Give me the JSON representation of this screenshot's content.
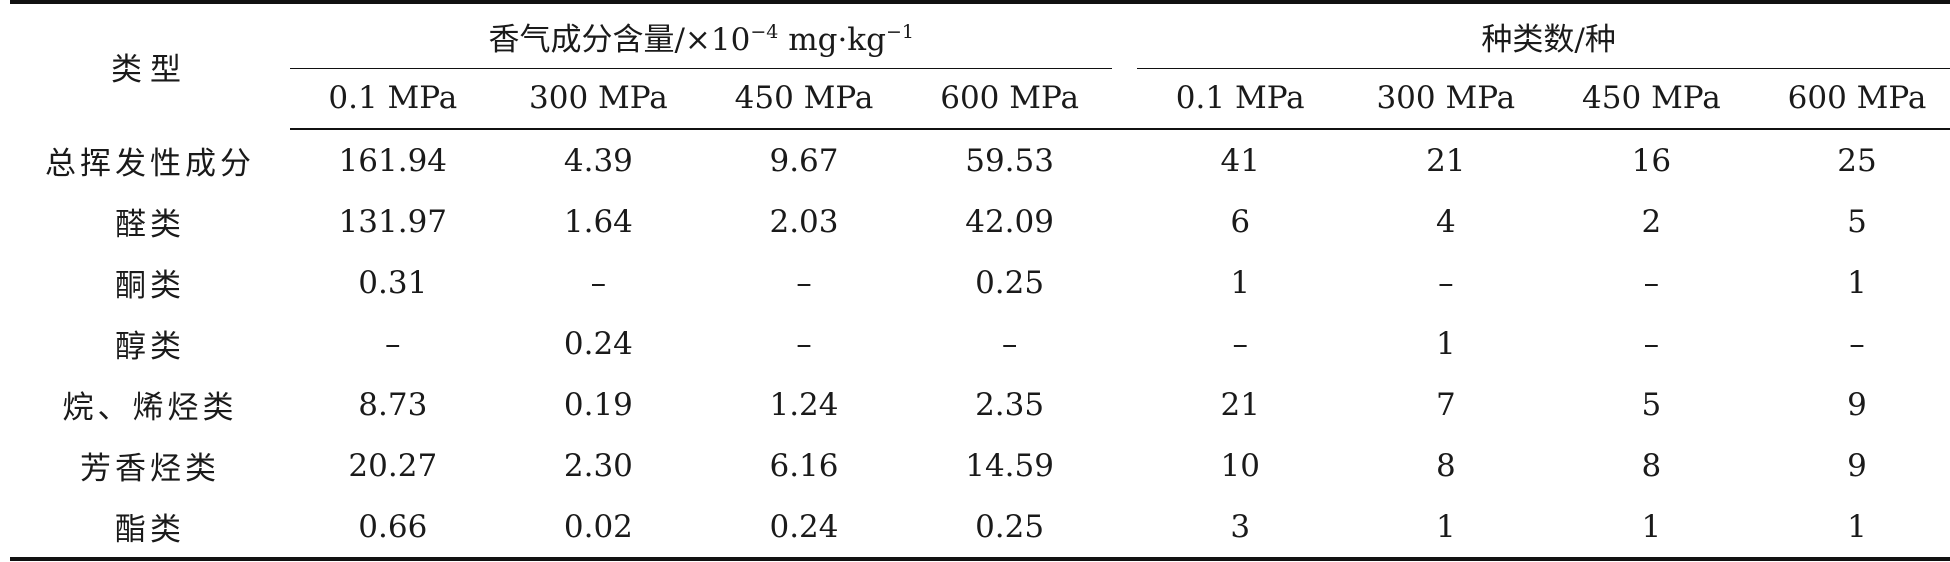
{
  "table": {
    "type_header": "类型",
    "group_content": {
      "label_prefix": "香气成分含量/×10",
      "exp1": "−4",
      "label_mid": " mg·kg",
      "exp2": "−1"
    },
    "group_count": {
      "label": "种类数/种"
    },
    "pressures": [
      "0.1 MPa",
      "300 MPa",
      "450 MPa",
      "600 MPa"
    ],
    "rows": [
      {
        "label": "总挥发性成分",
        "content": [
          "161.94",
          "4.39",
          "9.67",
          "59.53"
        ],
        "count": [
          "41",
          "21",
          "16",
          "25"
        ]
      },
      {
        "label": "醛类",
        "content": [
          "131.97",
          "1.64",
          "2.03",
          "42.09"
        ],
        "count": [
          "6",
          "4",
          "2",
          "5"
        ]
      },
      {
        "label": "酮类",
        "content": [
          "0.31",
          "–",
          "–",
          "0.25"
        ],
        "count": [
          "1",
          "–",
          "–",
          "1"
        ]
      },
      {
        "label": "醇类",
        "content": [
          "–",
          "0.24",
          "–",
          "–"
        ],
        "count": [
          "–",
          "1",
          "–",
          "–"
        ]
      },
      {
        "label": "烷、烯烃类",
        "content": [
          "8.73",
          "0.19",
          "1.24",
          "2.35"
        ],
        "count": [
          "21",
          "7",
          "5",
          "9"
        ]
      },
      {
        "label": "芳香烃类",
        "content": [
          "20.27",
          "2.30",
          "6.16",
          "14.59"
        ],
        "count": [
          "10",
          "8",
          "8",
          "9"
        ]
      },
      {
        "label": "酯类",
        "content": [
          "0.66",
          "0.02",
          "0.24",
          "0.25"
        ],
        "count": [
          "3",
          "1",
          "1",
          "1"
        ]
      }
    ]
  }
}
